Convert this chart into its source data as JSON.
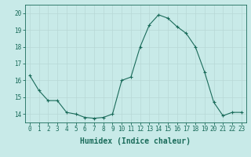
{
  "x": [
    0,
    1,
    2,
    3,
    4,
    5,
    6,
    7,
    8,
    9,
    10,
    11,
    12,
    13,
    14,
    15,
    16,
    17,
    18,
    19,
    20,
    21,
    22,
    23
  ],
  "y": [
    16.3,
    15.4,
    14.8,
    14.8,
    14.1,
    14.0,
    13.8,
    13.75,
    13.8,
    14.0,
    16.0,
    16.2,
    18.0,
    19.3,
    19.9,
    19.7,
    19.2,
    18.8,
    18.0,
    16.5,
    14.7,
    13.9,
    14.1,
    14.1
  ],
  "line_color": "#1a6b5a",
  "marker": "+",
  "bg_color": "#c8eae8",
  "grid_color": "#c0d8d6",
  "xlabel": "Humidex (Indice chaleur)",
  "ylim": [
    13.5,
    20.5
  ],
  "xlim": [
    -0.5,
    23.5
  ],
  "yticks": [
    14,
    15,
    16,
    17,
    18,
    19,
    20
  ],
  "xticks": [
    0,
    1,
    2,
    3,
    4,
    5,
    6,
    7,
    8,
    9,
    10,
    11,
    12,
    13,
    14,
    15,
    16,
    17,
    18,
    19,
    20,
    21,
    22,
    23
  ],
  "xtick_labels": [
    "0",
    "1",
    "2",
    "3",
    "4",
    "5",
    "6",
    "7",
    "8",
    "9",
    "10",
    "11",
    "12",
    "13",
    "14",
    "15",
    "16",
    "17",
    "18",
    "19",
    "20",
    "21",
    "22",
    "23"
  ],
  "font_family": "monospace",
  "tick_fontsize": 5.5,
  "label_fontsize": 7.0
}
